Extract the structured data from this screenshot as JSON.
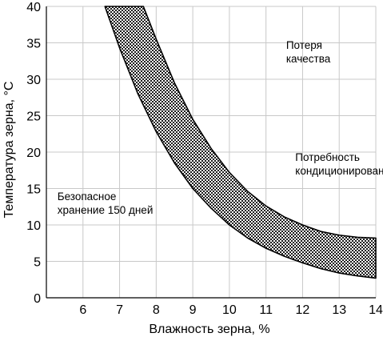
{
  "chart_data": {
    "type": "area",
    "xlabel": "Влажность зерна, %",
    "ylabel": "Температура зерна, °C",
    "xlim": [
      5,
      14
    ],
    "ylim": [
      0,
      40
    ],
    "x_ticks": [
      6,
      7,
      8,
      9,
      10,
      11,
      12,
      13,
      14
    ],
    "y_ticks": [
      0,
      5,
      10,
      15,
      20,
      25,
      30,
      35,
      40
    ],
    "grid": true,
    "band": {
      "fill_color": "#3a3a3a",
      "upper_boundary": [
        {
          "x": 7.65,
          "y": 40
        },
        {
          "x": 8.0,
          "y": 35.5
        },
        {
          "x": 8.5,
          "y": 29.5
        },
        {
          "x": 9.0,
          "y": 24.5
        },
        {
          "x": 9.5,
          "y": 20.5
        },
        {
          "x": 10.0,
          "y": 17.2
        },
        {
          "x": 10.5,
          "y": 14.6
        },
        {
          "x": 11.0,
          "y": 12.6
        },
        {
          "x": 11.5,
          "y": 11.1
        },
        {
          "x": 12.0,
          "y": 10.0
        },
        {
          "x": 12.5,
          "y": 9.1
        },
        {
          "x": 13.0,
          "y": 8.6
        },
        {
          "x": 13.5,
          "y": 8.3
        },
        {
          "x": 14.0,
          "y": 8.2
        }
      ],
      "lower_boundary": [
        {
          "x": 6.6,
          "y": 40
        },
        {
          "x": 7.0,
          "y": 34.3
        },
        {
          "x": 7.5,
          "y": 28.0
        },
        {
          "x": 8.0,
          "y": 22.8
        },
        {
          "x": 8.5,
          "y": 18.5
        },
        {
          "x": 9.0,
          "y": 15.0
        },
        {
          "x": 9.5,
          "y": 12.3
        },
        {
          "x": 10.0,
          "y": 10.0
        },
        {
          "x": 10.5,
          "y": 8.2
        },
        {
          "x": 11.0,
          "y": 6.8
        },
        {
          "x": 11.5,
          "y": 5.7
        },
        {
          "x": 12.0,
          "y": 4.8
        },
        {
          "x": 12.5,
          "y": 4.0
        },
        {
          "x": 13.0,
          "y": 3.4
        },
        {
          "x": 13.5,
          "y": 3.0
        },
        {
          "x": 14.0,
          "y": 2.7
        }
      ]
    },
    "annotations": [
      {
        "lines": [
          "Потеря",
          "качества"
        ],
        "x": 11.55,
        "y": 34.2
      },
      {
        "lines": [
          "Потребность",
          "кондиционирования"
        ],
        "x": 11.8,
        "y": 18.8
      },
      {
        "lines": [
          "Безопасное",
          "хранение 150 дней"
        ],
        "x": 5.3,
        "y": 13.4
      }
    ]
  }
}
